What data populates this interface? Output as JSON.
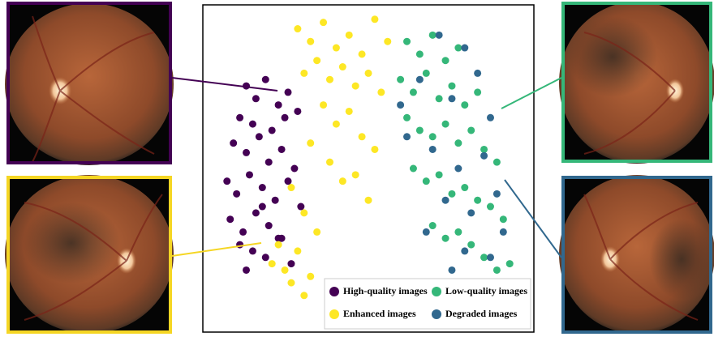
{
  "chart_data": {
    "type": "scatter",
    "xlim": [
      0,
      100
    ],
    "ylim": [
      0,
      100
    ],
    "series": [
      {
        "name": "High-quality images",
        "color": "#440154",
        "x": [
          12,
          15,
          18,
          22,
          25,
          28,
          10,
          14,
          20,
          24,
          8,
          12,
          16,
          19,
          23,
          27,
          6,
          9,
          13,
          17,
          21,
          25,
          29,
          7,
          11,
          15,
          19,
          23,
          10,
          14,
          18,
          22,
          26,
          12,
          17
        ],
        "values": [
          76,
          72,
          78,
          70,
          74,
          68,
          66,
          64,
          62,
          66,
          58,
          55,
          60,
          52,
          56,
          50,
          46,
          42,
          48,
          44,
          40,
          46,
          38,
          34,
          30,
          36,
          32,
          28,
          26,
          24,
          22,
          28,
          20,
          18,
          38
        ]
      },
      {
        "name": "Enhanced images",
        "color": "#fde725",
        "x": [
          28,
          32,
          36,
          40,
          44,
          48,
          52,
          56,
          30,
          34,
          38,
          42,
          46,
          50,
          54,
          36,
          40,
          44,
          48,
          52,
          32,
          38,
          42,
          46,
          50,
          26,
          30,
          34,
          28,
          24,
          22,
          26,
          30,
          20,
          32
        ],
        "values": [
          94,
          90,
          96,
          88,
          92,
          86,
          97,
          90,
          80,
          84,
          78,
          82,
          76,
          80,
          74,
          70,
          64,
          68,
          60,
          56,
          58,
          52,
          46,
          48,
          40,
          44,
          36,
          30,
          24,
          18,
          26,
          14,
          10,
          20,
          16
        ]
      },
      {
        "name": "Low-quality images",
        "color": "#35b779",
        "x": [
          62,
          66,
          70,
          74,
          78,
          60,
          64,
          68,
          72,
          76,
          80,
          84,
          62,
          66,
          70,
          74,
          78,
          82,
          86,
          90,
          64,
          68,
          72,
          76,
          80,
          84,
          88,
          92,
          70,
          74,
          78,
          82,
          86,
          90,
          94
        ],
        "values": [
          90,
          86,
          92,
          84,
          88,
          78,
          74,
          80,
          72,
          76,
          70,
          74,
          66,
          62,
          60,
          64,
          58,
          62,
          56,
          52,
          50,
          46,
          48,
          42,
          44,
          40,
          38,
          34,
          32,
          28,
          30,
          26,
          22,
          18,
          20
        ]
      },
      {
        "name": "Degraded images",
        "color": "#31688e",
        "x": [
          72,
          80,
          66,
          76,
          84,
          88,
          62,
          70,
          78,
          86,
          74,
          82,
          90,
          68,
          80,
          92,
          76,
          84,
          60,
          88
        ],
        "values": [
          92,
          88,
          78,
          72,
          80,
          66,
          60,
          56,
          50,
          54,
          40,
          36,
          42,
          30,
          24,
          30,
          18,
          14,
          70,
          22
        ]
      }
    ]
  }
}
